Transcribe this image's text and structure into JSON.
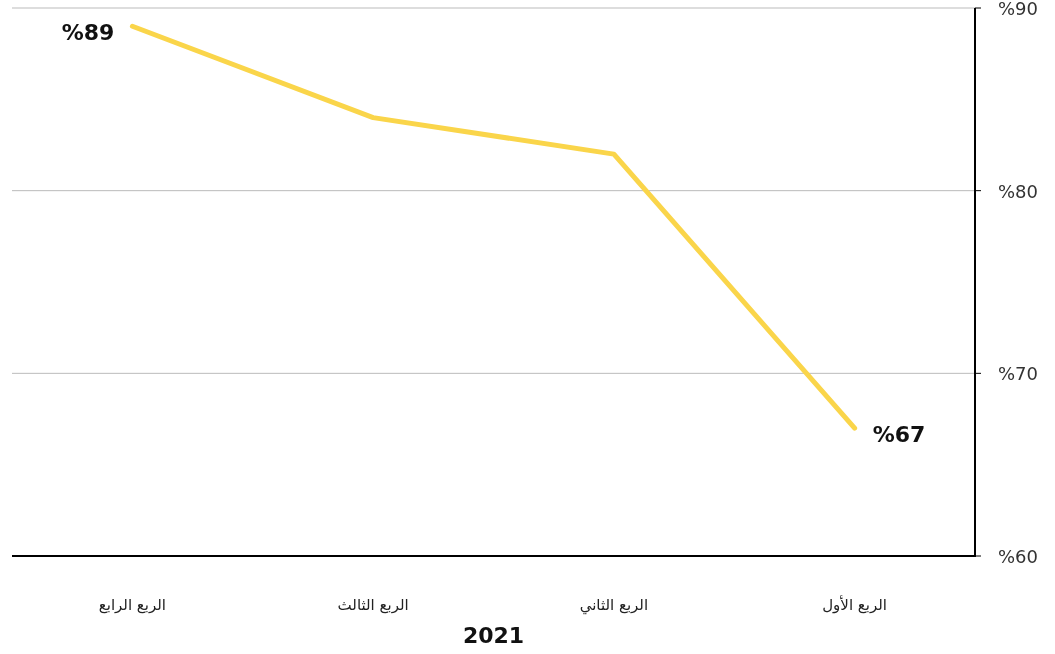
{
  "chart_data": {
    "type": "line",
    "categories": [
      "الربع الرابع",
      "الربع الثالث",
      "الربع الثاني",
      "الربع الأول"
    ],
    "series": [
      {
        "color": "#fad54a",
        "values": [
          89,
          84,
          82,
          67
        ],
        "value_labels": [
          "%89",
          null,
          null,
          "%67"
        ]
      }
    ],
    "xlabel": "2021",
    "ylim": [
      60,
      90
    ],
    "yticks": [
      {
        "value": 60,
        "label": "%60"
      },
      {
        "value": 70,
        "label": "%70"
      },
      {
        "value": 80,
        "label": "%80"
      },
      {
        "value": 90,
        "label": "%90"
      }
    ],
    "grid": "y"
  }
}
